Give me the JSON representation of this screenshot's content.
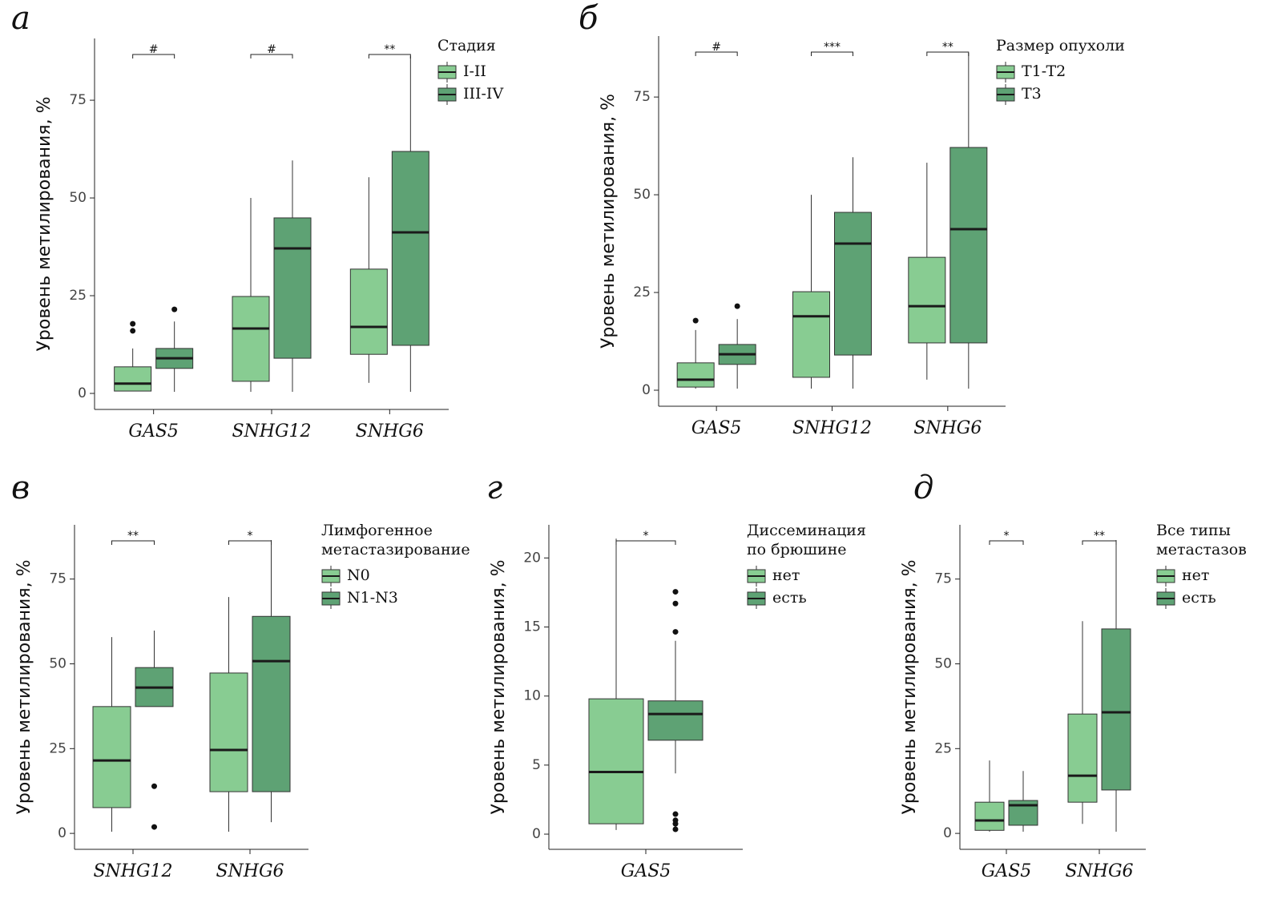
{
  "chart_data": [
    {
      "type": "box",
      "panel_label": "а",
      "ylabel": "Уровень метилирования, %",
      "categories": [
        "GAS5",
        "SNHG12",
        "SNHG6"
      ],
      "legend_title": [
        "Стадия"
      ],
      "ylim": [
        -4.1,
        90.8
      ],
      "yticks": [
        0,
        25,
        50,
        75
      ],
      "significance": [
        "#",
        "#",
        "**"
      ],
      "series": [
        {
          "name": "I-II",
          "color": "#88cc92",
          "boxes": [
            {
              "low": 0.6,
              "q1": 0.6,
              "median": 2.5,
              "q3": 6.8,
              "high": 11.5,
              "outliers": [
                17.8,
                16
              ]
            },
            {
              "low": 0.4,
              "q1": 3.1,
              "median": 16.6,
              "q3": 24.8,
              "high": 50,
              "outliers": []
            },
            {
              "low": 2.7,
              "q1": 10,
              "median": 17,
              "q3": 31.8,
              "high": 55.3,
              "outliers": []
            }
          ]
        },
        {
          "name": "III-IV",
          "color": "#5ea274",
          "boxes": [
            {
              "low": 0.4,
              "q1": 6.4,
              "median": 9,
              "q3": 11.5,
              "high": 18.4,
              "outliers": [
                21.5
              ]
            },
            {
              "low": 0.4,
              "q1": 9,
              "median": 37.1,
              "q3": 44.9,
              "high": 59.6,
              "outliers": []
            },
            {
              "low": 0.4,
              "q1": 12.3,
              "median": 41.2,
              "q3": 61.9,
              "high": 86.3,
              "outliers": []
            }
          ]
        }
      ]
    },
    {
      "type": "box",
      "panel_label": "б",
      "ylabel": "Уровень метилирования, %",
      "categories": [
        "GAS5",
        "SNHG12",
        "SNHG6"
      ],
      "legend_title": [
        "Размер опухоли"
      ],
      "ylim": [
        -4.1,
        90.6
      ],
      "yticks": [
        0,
        25,
        50,
        75
      ],
      "significance": [
        "#",
        "***",
        "**"
      ],
      "series": [
        {
          "name": "T1-T2",
          "color": "#88cc92",
          "boxes": [
            {
              "low": 0.4,
              "q1": 0.8,
              "median": 2.7,
              "q3": 7,
              "high": 15.4,
              "outliers": [
                17.8
              ]
            },
            {
              "low": 0.4,
              "q1": 3.3,
              "median": 18.9,
              "q3": 25.2,
              "high": 50,
              "outliers": []
            },
            {
              "low": 2.7,
              "q1": 12.1,
              "median": 21.5,
              "q3": 34,
              "high": 58.2,
              "outliers": []
            }
          ]
        },
        {
          "name": "T3",
          "color": "#5ea274",
          "boxes": [
            {
              "low": 0.4,
              "q1": 6.6,
              "median": 9.2,
              "q3": 11.7,
              "high": 18.2,
              "outliers": [
                21.5
              ]
            },
            {
              "low": 0.4,
              "q1": 9,
              "median": 37.5,
              "q3": 45.5,
              "high": 59.6,
              "outliers": []
            },
            {
              "low": 0.4,
              "q1": 12.1,
              "median": 41.2,
              "q3": 62.1,
              "high": 86.3,
              "outliers": []
            }
          ]
        }
      ]
    },
    {
      "type": "box",
      "panel_label": "в",
      "ylabel": "Уровень метилирования, %",
      "categories": [
        "SNHG12",
        "SNHG6"
      ],
      "legend_title": [
        "Лимфогенное",
        "метастазирование"
      ],
      "ylim": [
        -4.7,
        91
      ],
      "yticks": [
        0,
        25,
        50,
        75
      ],
      "significance": [
        "**",
        "*"
      ],
      "series": [
        {
          "name": "N0",
          "color": "#88cc92",
          "boxes": [
            {
              "low": 0.5,
              "q1": 7.6,
              "median": 21.5,
              "q3": 37.4,
              "high": 57.9,
              "outliers": []
            },
            {
              "low": 0.5,
              "q1": 12.3,
              "median": 24.6,
              "q3": 47.3,
              "high": 69.7,
              "outliers": []
            }
          ]
        },
        {
          "name": "N1-N3",
          "color": "#5ea274",
          "boxes": [
            {
              "low": 37.4,
              "q1": 37.4,
              "median": 43,
              "q3": 48.9,
              "high": 59.8,
              "outliers": [
                13.9,
                1.9
              ]
            },
            {
              "low": 3.3,
              "q1": 12.3,
              "median": 50.8,
              "q3": 64,
              "high": 86.5,
              "outliers": []
            }
          ]
        }
      ]
    },
    {
      "type": "box",
      "panel_label": "г",
      "ylabel": "Уровень метилирования, %",
      "categories": [
        "GAS5"
      ],
      "legend_title": [
        "Диссеминация",
        "по брюшине"
      ],
      "ylim": [
        -1.1,
        22.4
      ],
      "yticks": [
        0,
        5,
        10,
        15,
        20
      ],
      "significance": [
        "*"
      ],
      "series": [
        {
          "name": "нет",
          "color": "#88cc92",
          "boxes": [
            {
              "low": 0.3,
              "q1": 0.75,
              "median": 4.5,
              "q3": 9.8,
              "high": 21.4,
              "outliers": []
            }
          ]
        },
        {
          "name": "есть",
          "color": "#5ea274",
          "boxes": [
            {
              "low": 4.4,
              "q1": 6.8,
              "median": 8.7,
              "q3": 9.65,
              "high": 14,
              "outliers": [
                14.65,
                16.7,
                17.55,
                1.45,
                1,
                0.75,
                0.35
              ]
            }
          ]
        }
      ]
    },
    {
      "type": "box",
      "panel_label": "д",
      "ylabel": "Уровень метилирования, %",
      "categories": [
        "GAS5",
        "SNHG6"
      ],
      "legend_title": [
        "Все типы",
        "метастазов"
      ],
      "ylim": [
        -4.7,
        91
      ],
      "yticks": [
        0,
        25,
        50,
        75
      ],
      "significance": [
        "*",
        "**"
      ],
      "series": [
        {
          "name": "нет",
          "color": "#88cc92",
          "boxes": [
            {
              "low": 0.5,
              "q1": 0.9,
              "median": 3.8,
              "q3": 9.2,
              "high": 21.5,
              "outliers": []
            },
            {
              "low": 2.8,
              "q1": 9.2,
              "median": 17,
              "q3": 35.2,
              "high": 62.6,
              "outliers": []
            }
          ]
        },
        {
          "name": "есть",
          "color": "#5ea274",
          "boxes": [
            {
              "low": 0.5,
              "q1": 2.4,
              "median": 8.3,
              "q3": 9.7,
              "high": 18.4,
              "outliers": []
            },
            {
              "low": 0.5,
              "q1": 12.8,
              "median": 35.7,
              "q3": 60.3,
              "high": 86.5,
              "outliers": []
            }
          ]
        }
      ]
    }
  ]
}
